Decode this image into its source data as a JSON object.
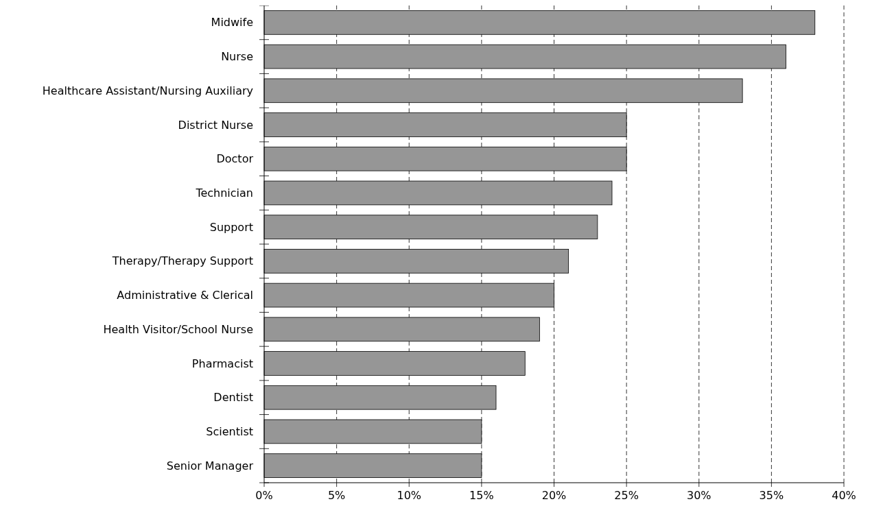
{
  "chart_data": {
    "type": "bar",
    "orientation": "horizontal",
    "categories": [
      "Midwife",
      "Nurse",
      "Healthcare Assistant/Nursing Auxiliary",
      "District Nurse",
      "Doctor",
      "Technician",
      "Support",
      "Therapy/Therapy Support",
      "Administrative & Clerical",
      "Health Visitor/School Nurse",
      "Pharmacist",
      "Dentist",
      "Scientist",
      "Senior Manager"
    ],
    "values": [
      38,
      36,
      33,
      25,
      25,
      24,
      23,
      21,
      20,
      19,
      18,
      16,
      15,
      15
    ],
    "color": "#969696",
    "xlim": [
      0,
      40
    ],
    "xticks": [
      {
        "value": 0,
        "label": "0%"
      },
      {
        "value": 5,
        "label": "5%"
      },
      {
        "value": 10,
        "label": "10%"
      },
      {
        "value": 15,
        "label": "15%"
      },
      {
        "value": 20,
        "label": "20%"
      },
      {
        "value": 25,
        "label": "25%"
      },
      {
        "value": 30,
        "label": "30%"
      },
      {
        "value": 35,
        "label": "35%"
      },
      {
        "value": 40,
        "label": "40%"
      }
    ],
    "grid": "x"
  }
}
